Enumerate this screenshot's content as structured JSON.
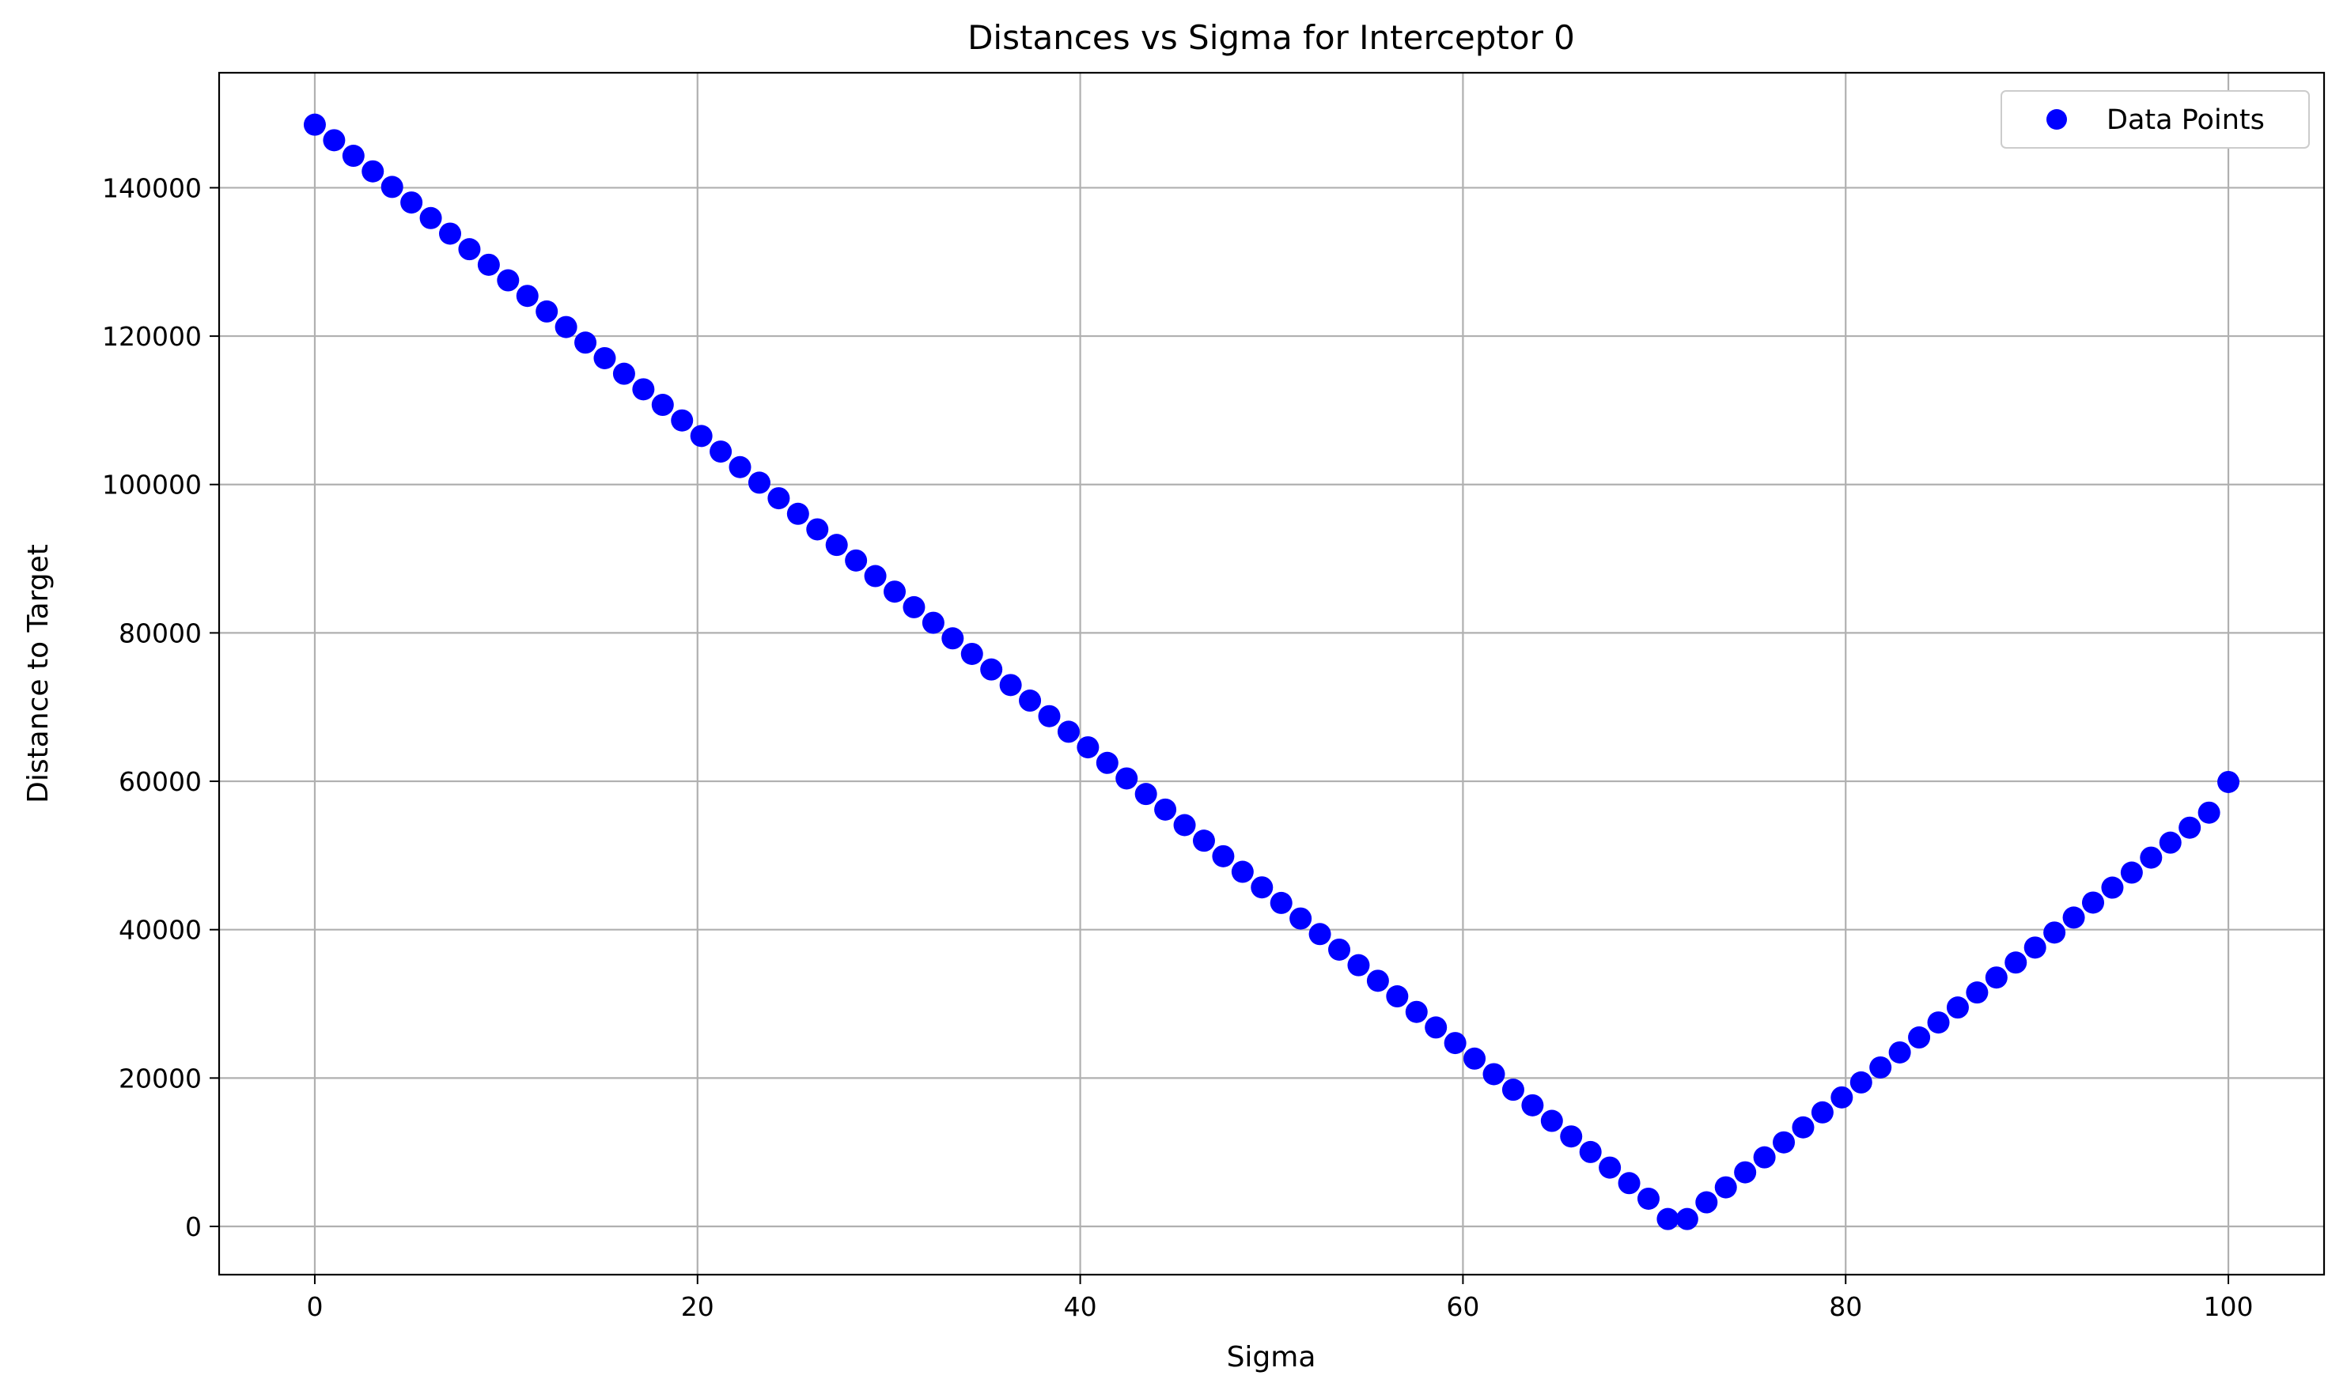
{
  "chart_data": {
    "type": "scatter",
    "title": "Distances vs Sigma for Interceptor 0",
    "xlabel": "Sigma",
    "ylabel": "Distance to Target",
    "xlim": [
      -5,
      105
    ],
    "ylim": [
      -6500,
      155500
    ],
    "xticks": [
      0,
      20,
      40,
      60,
      80,
      100
    ],
    "yticks": [
      0,
      20000,
      40000,
      60000,
      80000,
      100000,
      120000,
      140000
    ],
    "grid": true,
    "legend": {
      "placement": "top-right",
      "entries": [
        "Data Points"
      ]
    },
    "marker_color": "#0000ff",
    "series": [
      {
        "name": "Data Points",
        "x": [
          0,
          1.0101,
          2.0202,
          3.0303,
          4.0404,
          5.0505,
          6.0606,
          7.0707,
          8.0808,
          9.0909,
          10.101,
          11.1111,
          12.1212,
          13.1313,
          14.1414,
          15.1515,
          16.1616,
          17.1717,
          18.1818,
          19.1919,
          20.202,
          21.2121,
          22.2222,
          23.2323,
          24.2424,
          25.2525,
          26.2626,
          27.2727,
          28.2828,
          29.2929,
          30.303,
          31.3131,
          32.3232,
          33.3333,
          34.3434,
          35.3535,
          36.3636,
          37.3737,
          38.3838,
          39.3939,
          40.404,
          41.4141,
          42.4242,
          43.4343,
          44.4444,
          45.4545,
          46.4646,
          47.4747,
          48.4848,
          49.4949,
          50.5051,
          51.5152,
          52.5253,
          53.5354,
          54.5455,
          55.5556,
          56.5657,
          57.5758,
          58.5859,
          59.596,
          60.6061,
          61.6162,
          62.6263,
          63.6364,
          64.6465,
          65.6566,
          66.6667,
          67.6768,
          68.6869,
          69.697,
          70.7071,
          71.7172,
          72.7273,
          73.7374,
          74.7475,
          75.7576,
          76.7677,
          77.7778,
          78.7879,
          79.798,
          80.8081,
          81.8182,
          82.8283,
          83.8384,
          84.8485,
          85.8586,
          86.8687,
          87.8788,
          88.8889,
          89.899,
          90.9091,
          91.9192,
          92.9293,
          93.9394,
          94.9495,
          95.9596,
          96.9697,
          97.9798,
          98.9899,
          100
        ],
        "y": [
          148500,
          146402,
          144304,
          142206,
          140108,
          138010,
          135912,
          133814,
          131716,
          129618,
          127520,
          125422,
          123324,
          121226,
          119128,
          117030,
          114932,
          112834,
          110736,
          108638,
          106540,
          104442,
          102344,
          100246,
          98148,
          96050,
          93952,
          91854,
          89756,
          87658,
          85560,
          83462,
          81364,
          79266,
          77168,
          75070,
          72972,
          70874,
          68776,
          66678,
          64580,
          62482,
          60384,
          58286,
          56188,
          54090,
          51992,
          49894,
          47796,
          45698,
          43600,
          41502,
          39404,
          37306,
          35208,
          33110,
          31012,
          28914,
          26816,
          24718,
          22620,
          20522,
          18424,
          16326,
          14228,
          12130,
          10032,
          7934,
          5836,
          3738,
          1000,
          1000,
          3250,
          5270,
          7290,
          9310,
          11330,
          13350,
          15370,
          17390,
          19410,
          21430,
          23450,
          25470,
          27490,
          29510,
          31530,
          33550,
          35570,
          37590,
          39610,
          41630,
          43650,
          45670,
          47690,
          49710,
          51730,
          53750,
          55770,
          59900
        ]
      }
    ]
  }
}
